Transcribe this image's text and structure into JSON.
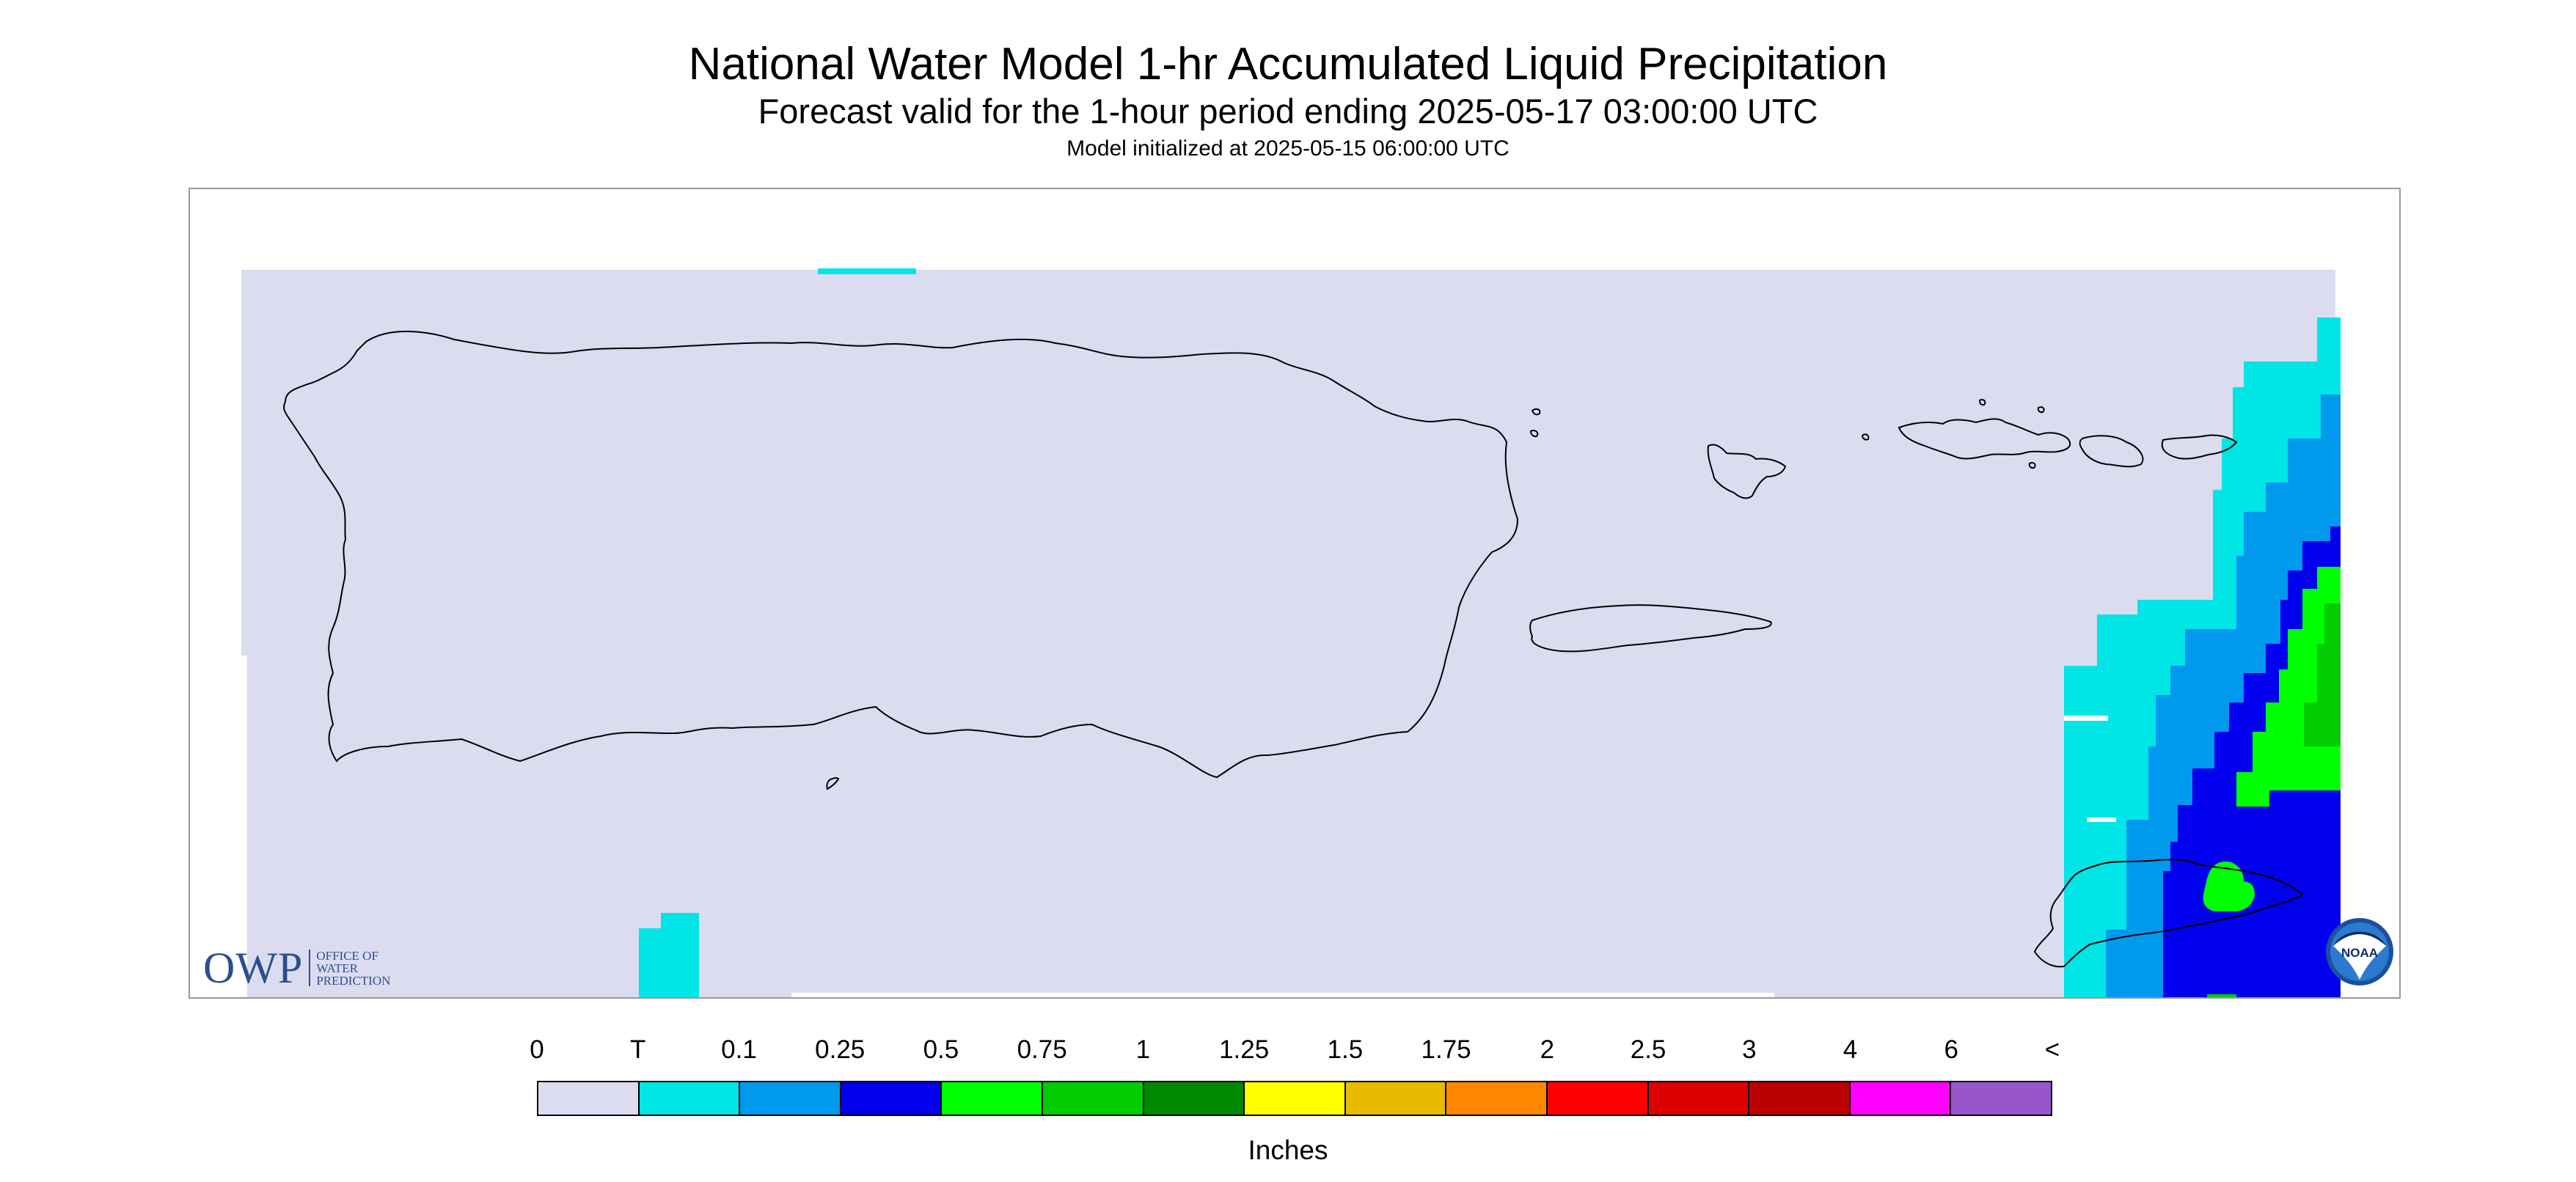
{
  "header": {
    "title": "National Water Model 1-hr Accumulated Liquid Precipitation",
    "subtitle": "Forecast valid for the 1-hour period ending 2025-05-17 03:00:00 UTC",
    "init_line": "Model initialized at 2025-05-15 06:00:00 UTC"
  },
  "map": {
    "background_color": "#dcdcf0",
    "coastline_color": "#000000",
    "precip_band": "0.1 to 2 inches along the eastern edge, near Vieques and St. Croix",
    "logos": {
      "owp": {
        "letters": "OWP",
        "full_name": "OFFICE OF\nWATER\nPREDICTION",
        "icon": "owp-logo"
      },
      "noaa": {
        "letters": "NOAA",
        "icon": "noaa-logo"
      }
    }
  },
  "legend": {
    "units": "Inches",
    "labels": [
      "0",
      "T",
      "0.1",
      "0.25",
      "0.5",
      "0.75",
      "1",
      "1.25",
      "1.5",
      "1.75",
      "2",
      "2.5",
      "3",
      "4",
      "6",
      "<"
    ],
    "colors": [
      "#dcdcf0",
      "#00e5e5",
      "#0099ee",
      "#0000ee",
      "#00ff00",
      "#00cc00",
      "#008800",
      "#ffff00",
      "#e6bb00",
      "#ff8800",
      "#ff0000",
      "#dd0000",
      "#bb0000",
      "#ff00ff",
      "#9955cc"
    ]
  }
}
